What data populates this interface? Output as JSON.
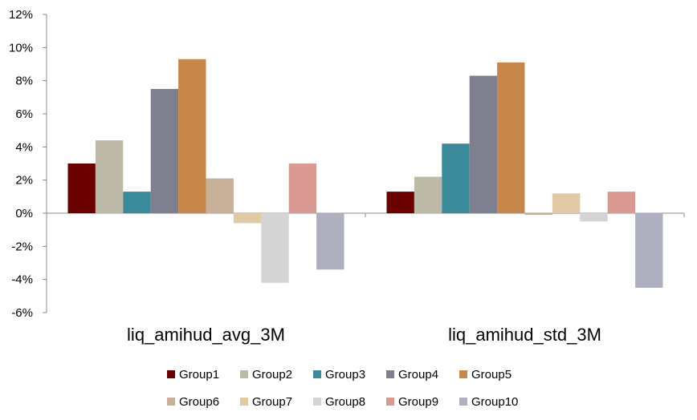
{
  "chart_data": {
    "type": "bar",
    "categories": [
      "liq_amihud_avg_3M",
      "liq_amihud_std_3M"
    ],
    "series": [
      {
        "name": "Group1",
        "color": "#6b0000",
        "values": [
          3.0,
          1.3
        ]
      },
      {
        "name": "Group2",
        "color": "#bdbba8",
        "values": [
          4.4,
          2.2
        ]
      },
      {
        "name": "Group3",
        "color": "#3a8a9a",
        "values": [
          1.3,
          4.2
        ]
      },
      {
        "name": "Group4",
        "color": "#7e8090",
        "values": [
          7.5,
          8.3
        ]
      },
      {
        "name": "Group5",
        "color": "#c8874a",
        "values": [
          9.3,
          9.1
        ]
      },
      {
        "name": "Group6",
        "color": "#c7b299",
        "values": [
          2.1,
          -0.1
        ]
      },
      {
        "name": "Group7",
        "color": "#e1c9a6",
        "values": [
          -0.6,
          1.2
        ]
      },
      {
        "name": "Group8",
        "color": "#d4d4d4",
        "values": [
          -4.2,
          -0.5
        ]
      },
      {
        "name": "Group9",
        "color": "#da9a93",
        "values": [
          3.0,
          1.3
        ]
      },
      {
        "name": "Group10",
        "color": "#aeb0c0",
        "values": [
          -3.4,
          -4.5
        ]
      }
    ],
    "y_ticks": [
      "12%",
      "10%",
      "8%",
      "6%",
      "4%",
      "2%",
      "0%",
      "-2%",
      "-4%",
      "-6%"
    ],
    "ylim": [
      -6,
      12
    ],
    "y_unit": "%",
    "grid": false,
    "legend_position": "bottom"
  }
}
